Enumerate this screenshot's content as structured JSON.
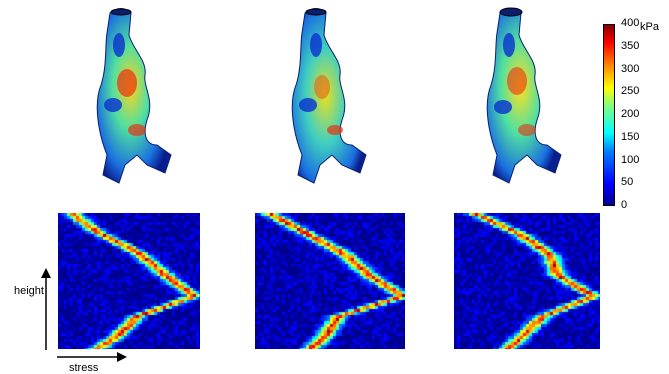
{
  "colorbar": {
    "unit": "kPa",
    "ticks": [
      "400",
      "350",
      "300",
      "250",
      "200",
      "150",
      "100",
      "50",
      "0"
    ],
    "range": [
      0,
      400
    ],
    "colors": [
      "#00008f",
      "#0000ff",
      "#0080ff",
      "#00ffff",
      "#80ff80",
      "#ffff00",
      "#ff8000",
      "#ff0000",
      "#800000"
    ]
  },
  "axes": {
    "y_label": "height",
    "x_label": "stress"
  },
  "rows": {
    "top": {
      "content": "aneurysm wall stress maps",
      "count": 3
    },
    "bottom": {
      "content": "height vs stress density maps",
      "count": 3
    }
  }
}
